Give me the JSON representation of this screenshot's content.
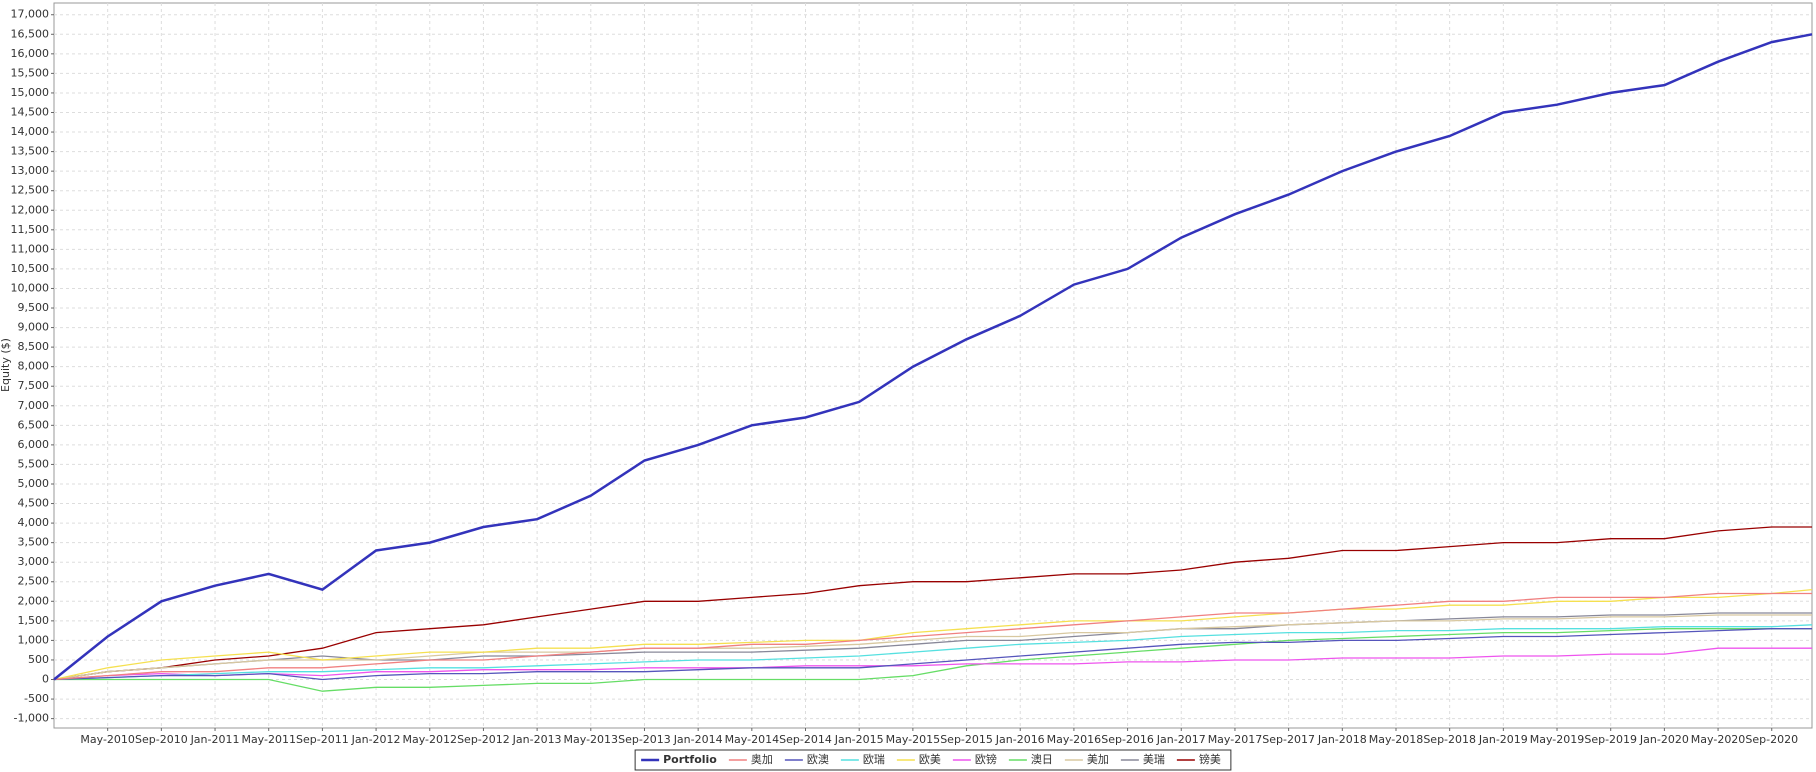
{
  "chart_data": {
    "type": "line",
    "y_label": "Equity ($)",
    "x": [
      "2010-01",
      "2010-05",
      "2010-09",
      "2011-01",
      "2011-05",
      "2011-09",
      "2012-01",
      "2012-05",
      "2012-09",
      "2013-01",
      "2013-05",
      "2013-09",
      "2014-01",
      "2014-05",
      "2014-09",
      "2015-01",
      "2015-05",
      "2015-09",
      "2016-01",
      "2016-05",
      "2016-09",
      "2017-01",
      "2017-05",
      "2017-09",
      "2018-01",
      "2018-05",
      "2018-09",
      "2019-01",
      "2019-05",
      "2019-09",
      "2020-01",
      "2020-05",
      "2020-09",
      "2020-12"
    ],
    "xlim": [
      "2010-01",
      "2020-12"
    ],
    "xticks": [
      {
        "value": "2010-05",
        "label": "May-2010"
      },
      {
        "value": "2010-09",
        "label": "Sep-2010"
      },
      {
        "value": "2011-01",
        "label": "Jan-2011"
      },
      {
        "value": "2011-05",
        "label": "May-2011"
      },
      {
        "value": "2011-09",
        "label": "Sep-2011"
      },
      {
        "value": "2012-01",
        "label": "Jan-2012"
      },
      {
        "value": "2012-05",
        "label": "May-2012"
      },
      {
        "value": "2012-09",
        "label": "Sep-2012"
      },
      {
        "value": "2013-01",
        "label": "Jan-2013"
      },
      {
        "value": "2013-05",
        "label": "May-2013"
      },
      {
        "value": "2013-09",
        "label": "Sep-2013"
      },
      {
        "value": "2014-01",
        "label": "Jan-2014"
      },
      {
        "value": "2014-05",
        "label": "May-2014"
      },
      {
        "value": "2014-09",
        "label": "Sep-2014"
      },
      {
        "value": "2015-01",
        "label": "Jan-2015"
      },
      {
        "value": "2015-05",
        "label": "May-2015"
      },
      {
        "value": "2015-09",
        "label": "Sep-2015"
      },
      {
        "value": "2016-01",
        "label": "Jan-2016"
      },
      {
        "value": "2016-05",
        "label": "May-2016"
      },
      {
        "value": "2016-09",
        "label": "Sep-2016"
      },
      {
        "value": "2017-01",
        "label": "Jan-2017"
      },
      {
        "value": "2017-05",
        "label": "May-2017"
      },
      {
        "value": "2017-09",
        "label": "Sep-2017"
      },
      {
        "value": "2018-01",
        "label": "Jan-2018"
      },
      {
        "value": "2018-05",
        "label": "May-2018"
      },
      {
        "value": "2018-09",
        "label": "Sep-2018"
      },
      {
        "value": "2019-01",
        "label": "Jan-2019"
      },
      {
        "value": "2019-05",
        "label": "May-2019"
      },
      {
        "value": "2019-09",
        "label": "Sep-2019"
      },
      {
        "value": "2020-01",
        "label": "Jan-2020"
      },
      {
        "value": "2020-05",
        "label": "May-2020"
      },
      {
        "value": "2020-09",
        "label": "Sep-2020"
      }
    ],
    "ylim": [
      -1240,
      17300
    ],
    "yticks": [
      {
        "value": -1000,
        "label": "-1,000"
      },
      -500,
      0,
      500,
      {
        "value": 1000,
        "label": "1,000"
      },
      {
        "value": 1500,
        "label": "1,500"
      },
      {
        "value": 2000,
        "label": "2,000"
      },
      {
        "value": 2500,
        "label": "2,500"
      },
      {
        "value": 3000,
        "label": "3,000"
      },
      {
        "value": 3500,
        "label": "3,500"
      },
      {
        "value": 4000,
        "label": "4,000"
      },
      {
        "value": 4500,
        "label": "4,500"
      },
      {
        "value": 5000,
        "label": "5,000"
      },
      {
        "value": 5500,
        "label": "5,500"
      },
      {
        "value": 6000,
        "label": "6,000"
      },
      {
        "value": 6500,
        "label": "6,500"
      },
      {
        "value": 7000,
        "label": "7,000"
      },
      {
        "value": 7500,
        "label": "7,500"
      },
      {
        "value": 8000,
        "label": "8,000"
      },
      {
        "value": 8500,
        "label": "8,500"
      },
      {
        "value": 9000,
        "label": "9,000"
      },
      {
        "value": 9500,
        "label": "9,500"
      },
      {
        "value": 10000,
        "label": "10,000"
      },
      {
        "value": 10500,
        "label": "10,500"
      },
      {
        "value": 11000,
        "label": "11,000"
      },
      {
        "value": 11500,
        "label": "11,500"
      },
      {
        "value": 12000,
        "label": "12,000"
      },
      {
        "value": 12500,
        "label": "12,500"
      },
      {
        "value": 13000,
        "label": "13,000"
      },
      {
        "value": 13500,
        "label": "13,500"
      },
      {
        "value": 14000,
        "label": "14,000"
      },
      {
        "value": 14500,
        "label": "14,500"
      },
      {
        "value": 15000,
        "label": "15,000"
      },
      {
        "value": 15500,
        "label": "15,500"
      },
      {
        "value": 16000,
        "label": "16,000"
      },
      {
        "value": 16500,
        "label": "16,500"
      },
      {
        "value": 17000,
        "label": "17,000"
      }
    ],
    "grid": true,
    "legend": "bottom",
    "series": [
      {
        "name": "Portfolio",
        "color": "#3333bb",
        "values": [
          0,
          1100,
          2000,
          2400,
          2700,
          2300,
          3300,
          3500,
          3900,
          4100,
          4700,
          5600,
          6000,
          6500,
          6700,
          7100,
          8000,
          8700,
          9300,
          10100,
          10500,
          11300,
          11900,
          12400,
          13000,
          13500,
          13900,
          14500,
          14700,
          15000,
          15200,
          15800,
          16300,
          16500
        ]
      },
      {
        "name": "奥加",
        "color": "#f08080",
        "values": [
          0,
          100,
          200,
          200,
          300,
          300,
          400,
          500,
          500,
          600,
          700,
          800,
          800,
          900,
          900,
          1000,
          1100,
          1200,
          1300,
          1400,
          1500,
          1600,
          1700,
          1700,
          1800,
          1900,
          2000,
          2000,
          2100,
          2100,
          2100,
          2200,
          2200,
          2200
        ]
      },
      {
        "name": "欧澳",
        "color": "#5555bb",
        "values": [
          0,
          50,
          100,
          100,
          150,
          0,
          100,
          150,
          150,
          200,
          200,
          200,
          250,
          300,
          300,
          300,
          400,
          500,
          600,
          700,
          800,
          900,
          950,
          950,
          1000,
          1000,
          1050,
          1100,
          1100,
          1150,
          1200,
          1250,
          1300,
          1300
        ]
      },
      {
        "name": "欧瑞",
        "color": "#55e0e0",
        "values": [
          0,
          50,
          100,
          150,
          200,
          200,
          250,
          300,
          300,
          350,
          400,
          450,
          500,
          500,
          550,
          600,
          700,
          800,
          900,
          950,
          1000,
          1100,
          1150,
          1200,
          1200,
          1250,
          1250,
          1300,
          1300,
          1300,
          1350,
          1350,
          1350,
          1400
        ]
      },
      {
        "name": "欧美",
        "color": "#f5e050",
        "values": [
          0,
          300,
          500,
          600,
          700,
          500,
          600,
          700,
          700,
          800,
          800,
          900,
          900,
          950,
          1000,
          1000,
          1200,
          1300,
          1400,
          1500,
          1500,
          1500,
          1600,
          1700,
          1800,
          1800,
          1900,
          1900,
          2000,
          2000,
          2100,
          2100,
          2200,
          2300
        ]
      },
      {
        "name": "欧镑",
        "color": "#ee55ee",
        "values": [
          0,
          100,
          150,
          100,
          150,
          100,
          200,
          200,
          250,
          250,
          250,
          300,
          300,
          300,
          350,
          350,
          350,
          400,
          400,
          400,
          450,
          450,
          500,
          500,
          550,
          550,
          550,
          600,
          600,
          650,
          650,
          800,
          800,
          800
        ]
      },
      {
        "name": "澳日",
        "color": "#66dd66",
        "values": [
          0,
          0,
          0,
          0,
          0,
          -300,
          -200,
          -200,
          -150,
          -100,
          -100,
          0,
          0,
          0,
          0,
          0,
          100,
          350,
          500,
          600,
          700,
          800,
          900,
          1000,
          1050,
          1100,
          1150,
          1200,
          1200,
          1250,
          1300,
          1300,
          1300,
          1300
        ]
      },
      {
        "name": "美加",
        "color": "#d8c8a0",
        "values": [
          0,
          200,
          300,
          400,
          500,
          500,
          500,
          600,
          700,
          700,
          700,
          800,
          800,
          800,
          850,
          900,
          1000,
          1100,
          1100,
          1200,
          1200,
          1300,
          1350,
          1400,
          1450,
          1500,
          1500,
          1550,
          1550,
          1600,
          1600,
          1650,
          1650,
          1650
        ]
      },
      {
        "name": "美瑞",
        "color": "#888899",
        "values": [
          0,
          200,
          300,
          400,
          500,
          600,
          500,
          500,
          600,
          600,
          650,
          700,
          700,
          700,
          750,
          800,
          900,
          1000,
          1000,
          1100,
          1200,
          1300,
          1300,
          1400,
          1450,
          1500,
          1550,
          1600,
          1600,
          1650,
          1650,
          1700,
          1700,
          1700
        ]
      },
      {
        "name": "镑美",
        "color": "#990000",
        "values": [
          0,
          200,
          300,
          500,
          600,
          800,
          1200,
          1300,
          1400,
          1600,
          1800,
          2000,
          2000,
          2100,
          2200,
          2400,
          2500,
          2500,
          2600,
          2700,
          2700,
          2800,
          3000,
          3100,
          3300,
          3300,
          3400,
          3500,
          3500,
          3600,
          3600,
          3800,
          3900,
          3900
        ]
      }
    ]
  }
}
